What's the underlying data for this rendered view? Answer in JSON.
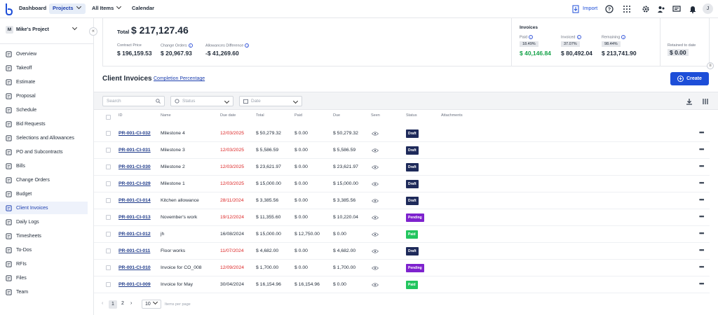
{
  "topnav": {
    "dashboard": "Dashboard",
    "projects": "Projects",
    "all_items": "All Items",
    "calendar": "Calendar",
    "import": "Import",
    "avatar_initial": "J"
  },
  "sidebar": {
    "project_initial": "M",
    "project_name": "Mike's Project",
    "items": [
      {
        "label": "Overview",
        "icon": "monitor-icon"
      },
      {
        "label": "Takeoff",
        "icon": "ruler-icon"
      },
      {
        "label": "Estimate",
        "icon": "calculator-icon"
      },
      {
        "label": "Proposal",
        "icon": "document-icon"
      },
      {
        "label": "Schedule",
        "icon": "calendar-icon"
      },
      {
        "label": "Bid Requests",
        "icon": "gavel-icon"
      },
      {
        "label": "Selections and Allowances",
        "icon": "list-icon"
      },
      {
        "label": "PO and Subcontracts",
        "icon": "receipt-icon"
      },
      {
        "label": "Bills",
        "icon": "bill-icon"
      },
      {
        "label": "Change Orders",
        "icon": "swap-icon"
      },
      {
        "label": "Budget",
        "icon": "wallet-icon"
      },
      {
        "label": "Client Invoices",
        "icon": "invoice-icon",
        "active": true
      },
      {
        "label": "Daily Logs",
        "icon": "log-icon"
      },
      {
        "label": "Timesheets",
        "icon": "clock-icon"
      },
      {
        "label": "To-Dos",
        "icon": "checklist-icon"
      },
      {
        "label": "RFIs",
        "icon": "question-icon"
      },
      {
        "label": "Files",
        "icon": "folder-icon"
      },
      {
        "label": "Team",
        "icon": "team-icon"
      }
    ]
  },
  "summary": {
    "total_label": "Total",
    "total_value": "$ 217,127.46",
    "contract_price_label": "Contract Price",
    "contract_price": "$ 196,159.53",
    "change_orders_label": "Change Orders",
    "change_orders": "$ 20,967.93",
    "allowances_label": "Allowances Difference",
    "allowances": "-$ 41,269.60",
    "invoices_title": "Invoices",
    "paid_label": "Paid",
    "paid_pct": "18.49%",
    "paid_value": "$ 40,146.84",
    "invoiced_label": "Invoiced",
    "invoiced_pct": "37.07%",
    "invoiced_value": "$ 80,492.04",
    "remaining_label": "Remaining",
    "remaining_pct": "98.44%",
    "remaining_value": "$ 213,741.90",
    "retained_label": "Retained to date",
    "retained_value": "$ 0.00"
  },
  "section": {
    "title": "Client Invoices",
    "completion_link": "Completion Percentage",
    "create_label": "Create"
  },
  "filters": {
    "search_placeholder": "Search",
    "status_placeholder": "Status",
    "date_placeholder": "Date"
  },
  "table": {
    "headers": {
      "id": "ID",
      "name": "Name",
      "due": "Due date",
      "total": "Total",
      "paid": "Paid",
      "due_amt": "Due",
      "seen": "Seen",
      "status": "Status",
      "attachments": "Attachments"
    },
    "rows": [
      {
        "id": "PR-001-CI-032",
        "name": "Milestone 4",
        "due_date": "12/03/2025",
        "overdue": true,
        "total": "$ 50,279.32",
        "paid": "$ 0.00",
        "due": "$ 50,279.32",
        "status": "Draft"
      },
      {
        "id": "PR-001-CI-031",
        "name": "Milestone 3",
        "due_date": "12/03/2025",
        "overdue": true,
        "total": "$ 5,586.59",
        "paid": "$ 0.00",
        "due": "$ 5,586.59",
        "status": "Draft"
      },
      {
        "id": "PR-001-CI-030",
        "name": "Milestone 2",
        "due_date": "12/03/2025",
        "overdue": true,
        "total": "$ 23,621.97",
        "paid": "$ 0.00",
        "due": "$ 23,621.97",
        "status": "Draft"
      },
      {
        "id": "PR-001-CI-029",
        "name": "Milestone 1",
        "due_date": "12/03/2025",
        "overdue": true,
        "total": "$ 15,000.00",
        "paid": "$ 0.00",
        "due": "$ 15,000.00",
        "status": "Draft"
      },
      {
        "id": "PR-001-CI-014",
        "name": "Kitchen allowance",
        "due_date": "28/11/2024",
        "overdue": true,
        "total": "$ 3,385.56",
        "paid": "$ 0.00",
        "due": "$ 3,385.56",
        "status": "Draft"
      },
      {
        "id": "PR-001-CI-013",
        "name": "November's work",
        "due_date": "19/12/2024",
        "overdue": true,
        "total": "$ 11,355.60",
        "paid": "$ 0.00",
        "due": "$ 10,220.04",
        "status": "Pending"
      },
      {
        "id": "PR-001-CI-012",
        "name": "jh",
        "due_date": "16/08/2024",
        "overdue": false,
        "total": "$ 15,000.00",
        "paid": "$ 12,750.00",
        "due": "$ 0.00",
        "status": "Paid"
      },
      {
        "id": "PR-001-CI-011",
        "name": "Floor works",
        "due_date": "11/07/2024",
        "overdue": true,
        "total": "$ 4,682.00",
        "paid": "$ 0.00",
        "due": "$ 4,682.00",
        "status": "Draft"
      },
      {
        "id": "PR-001-CI-010",
        "name": "Invoice for CO_008",
        "due_date": "12/09/2024",
        "overdue": true,
        "total": "$ 1,700.00",
        "paid": "$ 0.00",
        "due": "$ 1,700.00",
        "status": "Pending"
      },
      {
        "id": "PR-001-CI-009",
        "name": "Invoice for May",
        "due_date": "30/04/2024",
        "overdue": false,
        "total": "$ 16,154.96",
        "paid": "$ 16,154.96",
        "due": "$ 0.00",
        "status": "Paid"
      }
    ]
  },
  "pagination": {
    "page1": "1",
    "page2": "2",
    "per_page": "10",
    "per_page_label": "Items per page"
  },
  "colors": {
    "primary": "#1d4ed8",
    "draft": "#1e2a5a",
    "pending": "#7e22ce",
    "paid": "#22c55e",
    "paid_value": "#16a34a",
    "overdue": "#dc2626"
  }
}
